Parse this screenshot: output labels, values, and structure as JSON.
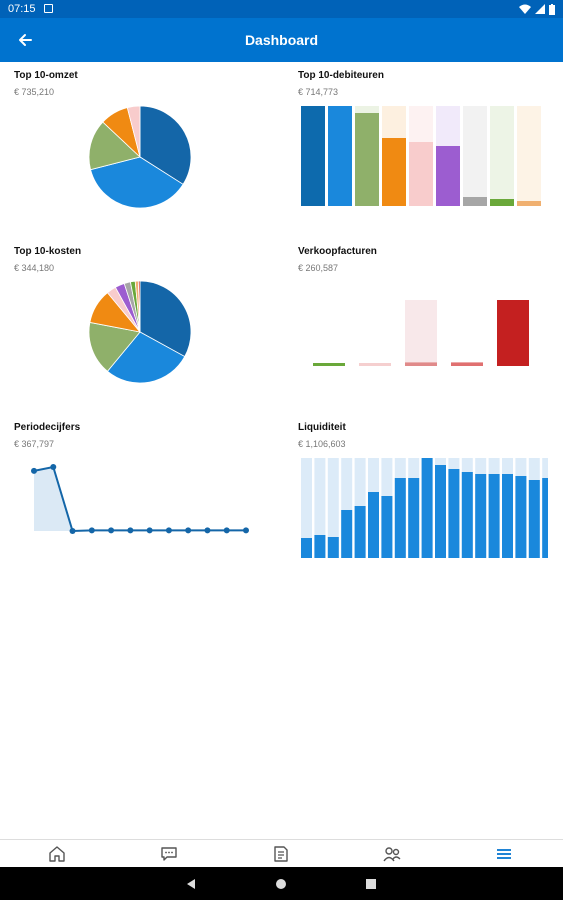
{
  "status": {
    "time": "07:15"
  },
  "app_bar": {
    "title": "Dashboard"
  },
  "colors": {
    "primary": "#0073cf",
    "status_bar": "#0062b8",
    "accent_blue": "#1a7fd4",
    "dark_blue": "#0b6aad"
  },
  "cards": {
    "top10_omzet": {
      "title": "Top 10-omzet",
      "value": "€ 735,210"
    },
    "top10_debiteuren": {
      "title": "Top 10-debiteuren",
      "value": "€ 714,773"
    },
    "top10_kosten": {
      "title": "Top 10-kosten",
      "value": "€ 344,180"
    },
    "verkoopfacturen": {
      "title": "Verkoopfacturen",
      "value": "€ 260,587"
    },
    "periodecijfers": {
      "title": "Periodecijfers",
      "value": "€ 367,797"
    },
    "liquiditeit": {
      "title": "Liquiditeit",
      "value": "€ 1,106,603"
    }
  },
  "chart_data": [
    {
      "id": "top10_omzet",
      "type": "pie",
      "values": [
        34,
        37,
        16,
        9,
        4
      ],
      "colors": [
        "#1466a8",
        "#1a88dc",
        "#8fb06a",
        "#f08a12",
        "#f8cccc"
      ]
    },
    {
      "id": "top10_debiteuren",
      "type": "bar",
      "values": [
        100,
        100,
        93,
        68,
        64,
        60,
        9,
        7,
        5
      ],
      "ylim": [
        0,
        100
      ],
      "colors": [
        "#0d6aad",
        "#1a88dc",
        "#8fb06a",
        "#f08a12",
        "#f8cccc",
        "#9c5dd0",
        "#a6a6a6",
        "#6aa83a",
        "#f0b070"
      ],
      "track_colors": [
        "#dfeaf5",
        "#dfeaf5",
        "#ecf3e4",
        "#fdf0e0",
        "#fdf2f2",
        "#f1eafa",
        "#f2f2f2",
        "#edf4e6",
        "#fdf3e6"
      ]
    },
    {
      "id": "top10_kosten",
      "type": "pie",
      "values": [
        33,
        28,
        17,
        11,
        3,
        3,
        2,
        1.5,
        1,
        0.5
      ],
      "colors": [
        "#1466a8",
        "#1a88dc",
        "#8fb06a",
        "#f08a12",
        "#f8cccc",
        "#9c5dd0",
        "#a6a6a6",
        "#6aa83a",
        "#f0b070",
        "#c81e1e"
      ]
    },
    {
      "id": "verkoopfacturen",
      "type": "bar",
      "values": [
        2,
        2,
        3,
        3,
        55
      ],
      "ylim": [
        0,
        55
      ],
      "colors": [
        "#6aa83a",
        "#f5cfcf",
        "#e08a8a",
        "#e07070",
        "#c42020"
      ],
      "track_colors": [
        "#ffffff",
        "#ffffff",
        "#f8e8ea",
        "#ffffff",
        "#ffffff"
      ]
    },
    {
      "id": "periodecijfers",
      "type": "area",
      "values": [
        94,
        100,
        0,
        1,
        1,
        1,
        1,
        1,
        1,
        1,
        1,
        1
      ],
      "color": "#1466a8",
      "fill": "#dbe9f5"
    },
    {
      "id": "liquiditeit",
      "type": "bar",
      "values": [
        20,
        23,
        21,
        48,
        52,
        66,
        62,
        80,
        80,
        100,
        93,
        89,
        86,
        84,
        84,
        84,
        82,
        78,
        80
      ],
      "ylim": [
        0,
        100
      ],
      "colors": [
        "#1a88dc"
      ],
      "track_colors": [
        "#dcebf8"
      ]
    }
  ]
}
